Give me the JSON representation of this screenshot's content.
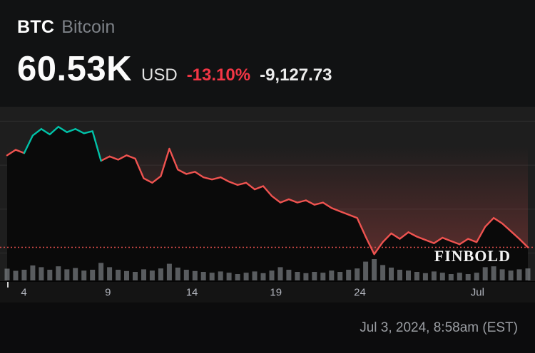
{
  "header": {
    "symbol": "BTC",
    "name": "Bitcoin"
  },
  "price": {
    "value": "60.53K",
    "currency": "USD",
    "change_percent": "-13.10%",
    "change_abs": "-9,127.73"
  },
  "watermark": {
    "text": "FINBOLD"
  },
  "footer": {
    "timestamp": "Jul 3, 2024, 8:58am (EST)"
  },
  "colors": {
    "up": "#00c2a8",
    "down": "#ef5350",
    "down_text": "#f23645",
    "volume": "#9aa0a6",
    "plot_bg": "#1e1e1e",
    "under_fill": "#0a0a0a",
    "grid": "#ffffff",
    "axis_text": "#b2b5be"
  },
  "chart_data": {
    "type": "line",
    "title": "BTC/USD price, Jun 3 - Jul 3 2024, with volume",
    "y_unit": "thousand USD",
    "ylim": [
      59.2,
      72.8
    ],
    "baseline": 69.7,
    "current_price": 60.53,
    "gridline_values": [
      72,
      68,
      64,
      60
    ],
    "x_domain_days": [
      0,
      31
    ],
    "points_per_day": 2,
    "prices": [
      68.9,
      69.4,
      69.1,
      70.7,
      71.3,
      70.8,
      71.5,
      71.0,
      71.3,
      70.9,
      71.1,
      68.4,
      68.8,
      68.5,
      68.9,
      68.6,
      66.8,
      66.4,
      67.0,
      69.5,
      67.6,
      67.2,
      67.4,
      66.9,
      66.7,
      66.9,
      66.5,
      66.2,
      66.4,
      65.8,
      66.1,
      65.2,
      64.6,
      64.9,
      64.6,
      64.8,
      64.4,
      64.6,
      64.1,
      63.8,
      63.5,
      63.2,
      61.5,
      59.9,
      61.0,
      61.8,
      61.3,
      61.9,
      61.5,
      61.2,
      60.9,
      61.4,
      61.1,
      60.8,
      61.3,
      61.0,
      62.4,
      63.2,
      62.7,
      62.0,
      61.3,
      60.53
    ],
    "volume_rel": [
      0.55,
      0.45,
      0.5,
      0.7,
      0.62,
      0.5,
      0.66,
      0.52,
      0.58,
      0.46,
      0.5,
      0.82,
      0.62,
      0.5,
      0.44,
      0.4,
      0.52,
      0.46,
      0.56,
      0.78,
      0.6,
      0.5,
      0.44,
      0.4,
      0.36,
      0.42,
      0.36,
      0.3,
      0.36,
      0.42,
      0.34,
      0.46,
      0.62,
      0.5,
      0.4,
      0.34,
      0.4,
      0.36,
      0.46,
      0.4,
      0.5,
      0.56,
      0.88,
      1.0,
      0.72,
      0.6,
      0.5,
      0.46,
      0.4,
      0.34,
      0.42,
      0.36,
      0.3,
      0.36,
      0.3,
      0.36,
      0.62,
      0.66,
      0.52,
      0.46,
      0.52,
      0.56
    ],
    "ticks": [
      {
        "label": "4",
        "day": 1
      },
      {
        "label": "9",
        "day": 6
      },
      {
        "label": "14",
        "day": 11
      },
      {
        "label": "19",
        "day": 16
      },
      {
        "label": "24",
        "day": 21
      },
      {
        "label": "Jul",
        "day": 28
      }
    ],
    "legend": "none",
    "grid": "horizontal-faint"
  }
}
